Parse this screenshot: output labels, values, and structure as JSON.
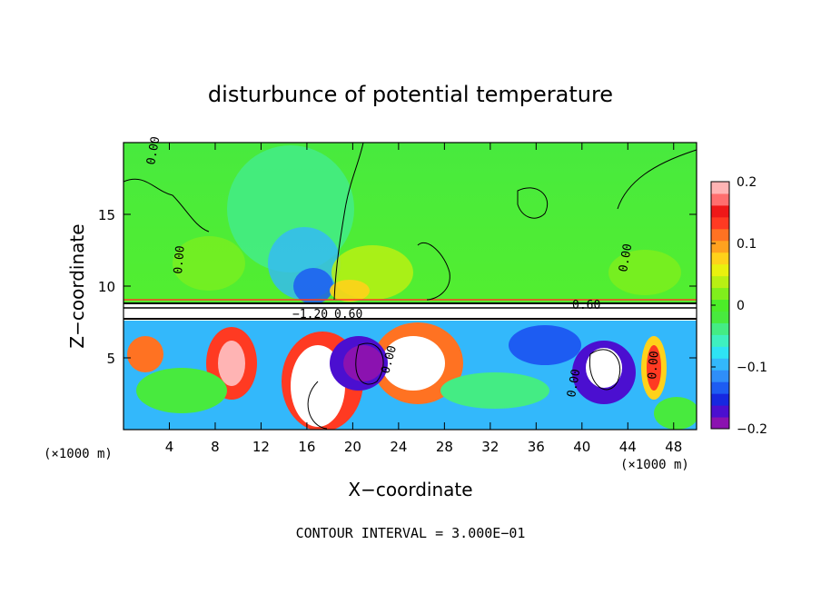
{
  "chart_data": {
    "type": "heatmap",
    "title": "disturbunce of potential temperature",
    "xlabel": "X−coordinate",
    "ylabel": "Z−coordinate",
    "x_unit_left": "(×1000 m)",
    "x_unit_right": "(×1000 m)",
    "x_ticks": [
      "4",
      "8",
      "12",
      "16",
      "20",
      "24",
      "28",
      "32",
      "36",
      "40",
      "44",
      "48"
    ],
    "y_ticks": [
      "5",
      "10",
      "15"
    ],
    "xlim": [
      0,
      50
    ],
    "ylim": [
      0,
      20
    ],
    "colorbar": {
      "min": -0.2,
      "max": 0.2,
      "ticks": [
        "0.2",
        "0.1",
        "0",
        "−0.1",
        "−0.2"
      ],
      "colors": [
        "#8b12b0",
        "#4b0fd0",
        "#1628e0",
        "#1d5cf2",
        "#2f8ef8",
        "#33b8fb",
        "#2ee3f4",
        "#3ef0c0",
        "#44ec84",
        "#48ea3e",
        "#4ced28",
        "#80ef1c",
        "#b8f013",
        "#e9f10e",
        "#ffd21a",
        "#ffa21f",
        "#ff7222",
        "#ff3a22",
        "#ef1818",
        "#ff6e6e",
        "#ffb4b4"
      ]
    },
    "contour_labels": [
      "0.00",
      "0.00",
      "0.00",
      "0.00",
      "0.00",
      "0.60",
      "−1.20",
      "0.60",
      "0.00"
    ],
    "footer": "CONTOUR INTERVAL = 3.000E−01"
  }
}
